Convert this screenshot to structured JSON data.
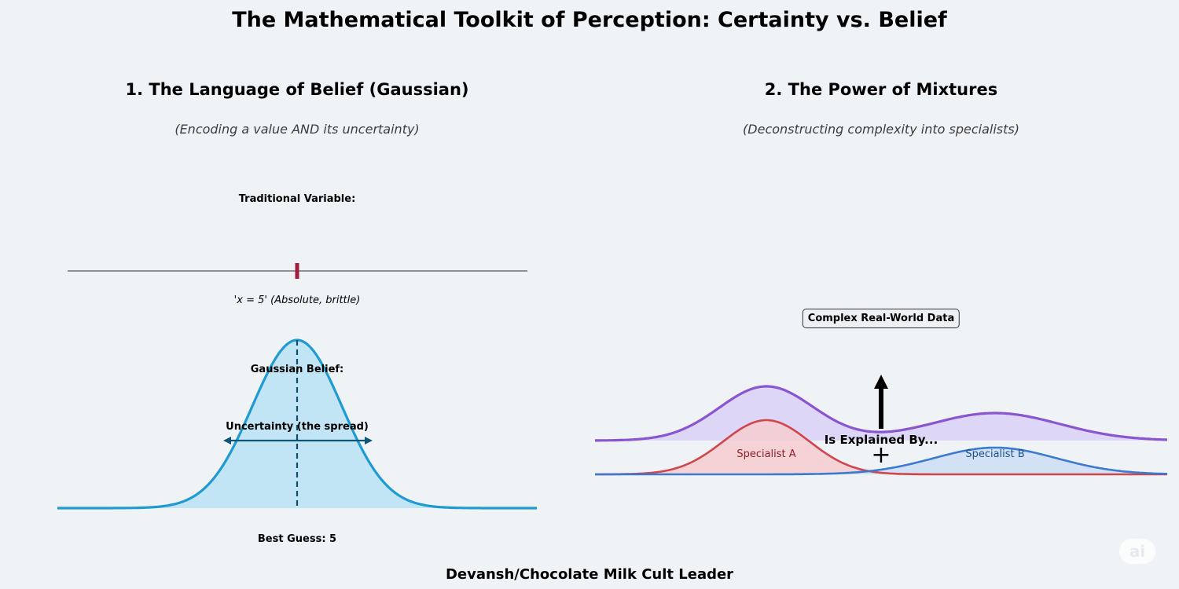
{
  "title": "The Mathematical Toolkit of Perception: Certainty vs. Belief",
  "left_panel": {
    "title": "1. The Language of Belief (Gaussian)",
    "subtitle": "(Encoding a value AND its uncertainty)",
    "traditional_label": "Traditional Variable:",
    "traditional_caption": "'x = 5' (Absolute, brittle)",
    "gaussian_label": "Gaussian Belief:",
    "uncertainty_label": "Uncertainty (the spread)",
    "best_guess_label": "Best Guess: 5"
  },
  "right_panel": {
    "title": "2. The Power of Mixtures",
    "subtitle": "(Deconstructing complexity into specialists)",
    "complex_box": "Complex Real-World Data",
    "explained_label": "Is Explained By...",
    "plus_sign": "+",
    "specialist_a": "Specialist A",
    "specialist_b": "Specialist B"
  },
  "footer": "Devansh/Chocolate Milk Cult Leader",
  "watermark": "ai",
  "colors": {
    "background": "#f0f3f6",
    "gaussian": "#1f9bd1",
    "gaussian_fill": "#c2e5f5",
    "marker": "#a31d3c",
    "mixture": "#8a55d0",
    "mixture_fill": "#dcd4f5",
    "specialist_a": "#d1454c",
    "specialist_a_fill": "#f4ced3",
    "specialist_b": "#3c7ad0",
    "specialist_b_fill": "#cfdff4"
  }
}
